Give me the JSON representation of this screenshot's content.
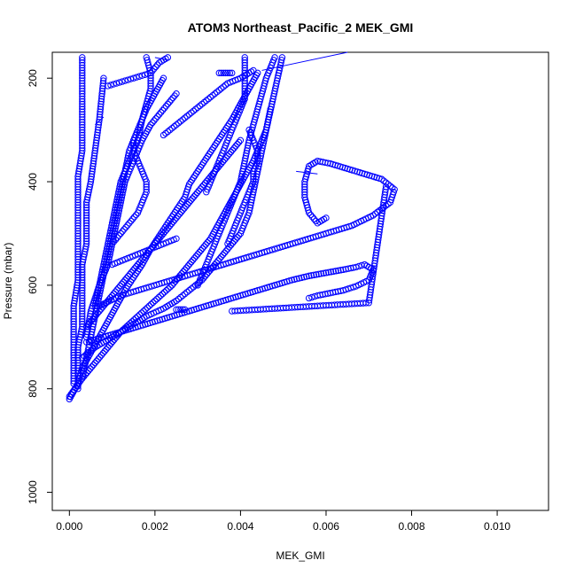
{
  "chart_data": {
    "type": "scatter",
    "title": "ATOM3 Northeast_Pacific_2 MEK_GMI",
    "xlabel": "MEK_GMI",
    "ylabel": "Pressure (mbar)",
    "xlim": [
      -0.0004,
      0.0112
    ],
    "ylim": [
      1035,
      150
    ],
    "y_reversed": true,
    "x_ticks": [
      "0.000",
      "0.002",
      "0.004",
      "0.006",
      "0.008",
      "0.010"
    ],
    "x_tick_values": [
      0,
      0.002,
      0.004,
      0.006,
      0.008,
      0.01
    ],
    "y_ticks": [
      "200",
      "400",
      "600",
      "800",
      "1000"
    ],
    "y_tick_values": [
      200,
      400,
      600,
      800,
      1000
    ],
    "marker": "open-circle",
    "color": "#0000ff",
    "grid": false,
    "series": [
      {
        "x": [
          0.0,
          0.0002,
          0.0003,
          0.0005,
          0.0007,
          0.0009,
          0.0011,
          0.0013,
          0.0015,
          0.0017,
          0.0019,
          0.0021,
          0.0023,
          0.0025,
          0.0027,
          0.0028,
          0.003,
          0.0032,
          0.0034,
          0.0036,
          0.0038,
          0.004,
          0.0042,
          0.0044
        ],
        "y": [
          820,
          790,
          760,
          730,
          700,
          670,
          640,
          610,
          585,
          560,
          530,
          505,
          480,
          455,
          430,
          405,
          380,
          355,
          330,
          305,
          280,
          250,
          220,
          190
        ]
      },
      {
        "x": [
          0.0,
          0.0003,
          0.0006,
          0.0009,
          0.0012,
          0.0016,
          0.002,
          0.0024,
          0.0027,
          0.003,
          0.0033,
          0.0035,
          0.0037,
          0.0039,
          0.0041,
          0.0043,
          0.0046,
          0.005
        ],
        "y": [
          815,
          780,
          750,
          720,
          690,
          660,
          630,
          600,
          570,
          540,
          510,
          480,
          450,
          420,
          390,
          360,
          300,
          150
        ]
      },
      {
        "x": [
          0.0003,
          0.0006,
          0.001,
          0.0014,
          0.0018,
          0.0022,
          0.0025,
          0.0028,
          0.0031,
          0.0034,
          0.0037,
          0.004,
          0.0042,
          0.0043,
          0.0044,
          0.0045,
          0.0046,
          0.0047
        ],
        "y": [
          740,
          720,
          700,
          680,
          660,
          645,
          630,
          610,
          590,
          560,
          530,
          500,
          460,
          420,
          380,
          340,
          300,
          260
        ]
      },
      {
        "x": [
          0.0004,
          0.0008,
          0.0012,
          0.0016,
          0.002,
          0.0024,
          0.0028,
          0.0032,
          0.0036,
          0.004,
          0.0044,
          0.0048,
          0.0052,
          0.0056,
          0.006,
          0.0064,
          0.0067,
          0.0069,
          0.0071,
          0.007,
          0.0067,
          0.0064,
          0.0061,
          0.0058,
          0.0056
        ],
        "y": [
          710,
          700,
          690,
          680,
          670,
          660,
          650,
          640,
          630,
          620,
          610,
          600,
          590,
          582,
          576,
          570,
          565,
          560,
          570,
          590,
          602,
          610,
          615,
          620,
          625
        ]
      },
      {
        "x": [
          0.0007,
          0.0012,
          0.0018,
          0.0024,
          0.003,
          0.0036,
          0.0042,
          0.0048,
          0.0054,
          0.006,
          0.0066,
          0.0071,
          0.0075,
          0.0076,
          0.0073,
          0.0069,
          0.0065,
          0.0061,
          0.0058,
          0.0056,
          0.0055,
          0.0055,
          0.0056,
          0.0058,
          0.006
        ],
        "y": [
          640,
          620,
          605,
          590,
          575,
          560,
          545,
          530,
          515,
          500,
          485,
          465,
          440,
          415,
          395,
          385,
          375,
          365,
          360,
          370,
          400,
          430,
          460,
          480,
          470
        ]
      },
      {
        "x": [
          0.0038,
          0.0042,
          0.0046,
          0.005,
          0.0054,
          0.0058,
          0.0062,
          0.0066,
          0.007,
          0.0074
        ],
        "y": [
          650,
          648,
          646,
          644,
          642,
          640,
          638,
          636,
          634,
          410
        ]
      },
      {
        "x": [
          0.0002,
          0.0002,
          0.0002,
          0.0003,
          0.0003,
          0.0003,
          0.0003,
          0.0004,
          0.0004,
          0.0004,
          0.0005,
          0.0006,
          0.0007,
          0.0008
        ],
        "y": [
          800,
          760,
          720,
          680,
          640,
          600,
          560,
          520,
          480,
          440,
          400,
          340,
          280,
          200
        ]
      },
      {
        "x": [
          0.0001,
          0.0001,
          0.0001,
          0.0001,
          0.0002,
          0.0002,
          0.0002,
          0.0002,
          0.0002,
          0.0003,
          0.0003,
          0.0003,
          0.0003
        ],
        "y": [
          790,
          740,
          690,
          640,
          590,
          540,
          490,
          440,
          390,
          340,
          290,
          240,
          160
        ]
      },
      {
        "x": [
          0.0003,
          0.0004,
          0.0005,
          0.0006,
          0.0007,
          0.0008,
          0.0009,
          0.001,
          0.0011,
          0.0012,
          0.0013,
          0.0014,
          0.0016,
          0.0018,
          0.002,
          0.0022
        ],
        "y": [
          780,
          740,
          700,
          660,
          620,
          580,
          540,
          500,
          460,
          420,
          380,
          340,
          300,
          260,
          230,
          200
        ]
      },
      {
        "x": [
          0.0004,
          0.0005,
          0.0007,
          0.0009,
          0.001,
          0.0011,
          0.0012,
          0.0013,
          0.0015,
          0.0017,
          0.0019,
          0.0021,
          0.0023,
          0.0025
        ],
        "y": [
          700,
          650,
          600,
          560,
          520,
          480,
          440,
          400,
          360,
          320,
          290,
          270,
          250,
          230
        ]
      },
      {
        "x": [
          0.0004,
          0.0007,
          0.001,
          0.0013,
          0.0016,
          0.0019,
          0.0022,
          0.0025,
          0.0028,
          0.0031,
          0.0034,
          0.0037,
          0.004
        ],
        "y": [
          680,
          650,
          620,
          590,
          560,
          530,
          500,
          470,
          440,
          410,
          380,
          350,
          320
        ]
      },
      {
        "x": [
          0.001,
          0.0012,
          0.0014,
          0.0016,
          0.0017,
          0.0018,
          0.0018,
          0.0017,
          0.0016,
          0.0015,
          0.0015,
          0.0016
        ],
        "y": [
          520,
          500,
          480,
          460,
          440,
          420,
          400,
          380,
          360,
          340,
          320,
          300
        ]
      },
      {
        "x": [
          0.0006,
          0.0007,
          0.0008,
          0.0009,
          0.001,
          0.0011,
          0.0012,
          0.0014,
          0.0016,
          0.0017,
          0.0018,
          0.0019,
          0.0019,
          0.0018
        ],
        "y": [
          640,
          600,
          560,
          520,
          480,
          440,
          400,
          360,
          320,
          280,
          250,
          220,
          190,
          160
        ]
      },
      {
        "x": [
          0.0032,
          0.0033,
          0.0034,
          0.0035,
          0.0036,
          0.0037,
          0.0038,
          0.0039,
          0.004,
          0.0041,
          0.0041,
          0.0041,
          0.0041,
          0.0041
        ],
        "y": [
          420,
          400,
          380,
          360,
          340,
          320,
          300,
          280,
          260,
          240,
          220,
          200,
          180,
          160
        ]
      },
      {
        "x": [
          0.0037,
          0.0038,
          0.0039,
          0.004,
          0.0041,
          0.0042,
          0.0043,
          0.0043,
          0.0044,
          0.0044,
          0.0043,
          0.0042
        ],
        "y": [
          520,
          500,
          480,
          460,
          440,
          420,
          400,
          380,
          360,
          340,
          320,
          300
        ]
      },
      {
        "x": [
          0.003,
          0.0032,
          0.0034,
          0.0036,
          0.0038,
          0.004,
          0.0041,
          0.0042,
          0.0043,
          0.0044,
          0.0045,
          0.0046,
          0.0047,
          0.0048
        ],
        "y": [
          600,
          560,
          520,
          480,
          440,
          400,
          360,
          320,
          290,
          260,
          230,
          200,
          180,
          160
        ]
      },
      {
        "x": [
          0.0022,
          0.0025,
          0.0028,
          0.0031,
          0.0034,
          0.0037,
          0.004,
          0.0043
        ],
        "y": [
          310,
          290,
          270,
          250,
          230,
          210,
          200,
          185
        ]
      },
      {
        "x": [
          0.0009,
          0.0011,
          0.0013,
          0.0015,
          0.0017,
          0.0019,
          0.0021,
          0.0023
        ],
        "y": [
          215,
          210,
          205,
          200,
          195,
          190,
          170,
          160
        ]
      },
      {
        "x": [
          0.001,
          0.0013,
          0.0016,
          0.0019,
          0.0022,
          0.0025
        ],
        "y": [
          560,
          550,
          540,
          530,
          520,
          510
        ]
      },
      {
        "x": [
          0.0025,
          0.0026,
          0.0027
        ],
        "y": [
          647,
          647,
          647
        ]
      },
      {
        "x": [
          0.0035,
          0.0036,
          0.0037,
          0.0038
        ],
        "y": [
          190,
          190,
          190,
          190
        ]
      }
    ],
    "lines": [
      {
        "x": [
          0.0045,
          0.0065
        ],
        "y": [
          185,
          150
        ]
      },
      {
        "x": [
          0.002,
          0.0023
        ],
        "y": [
          160,
          165
        ]
      },
      {
        "x": [
          0.0053,
          0.0058
        ],
        "y": [
          380,
          385
        ]
      },
      {
        "x": [
          0.0006,
          0.0008
        ],
        "y": [
          290,
          275
        ]
      }
    ]
  }
}
